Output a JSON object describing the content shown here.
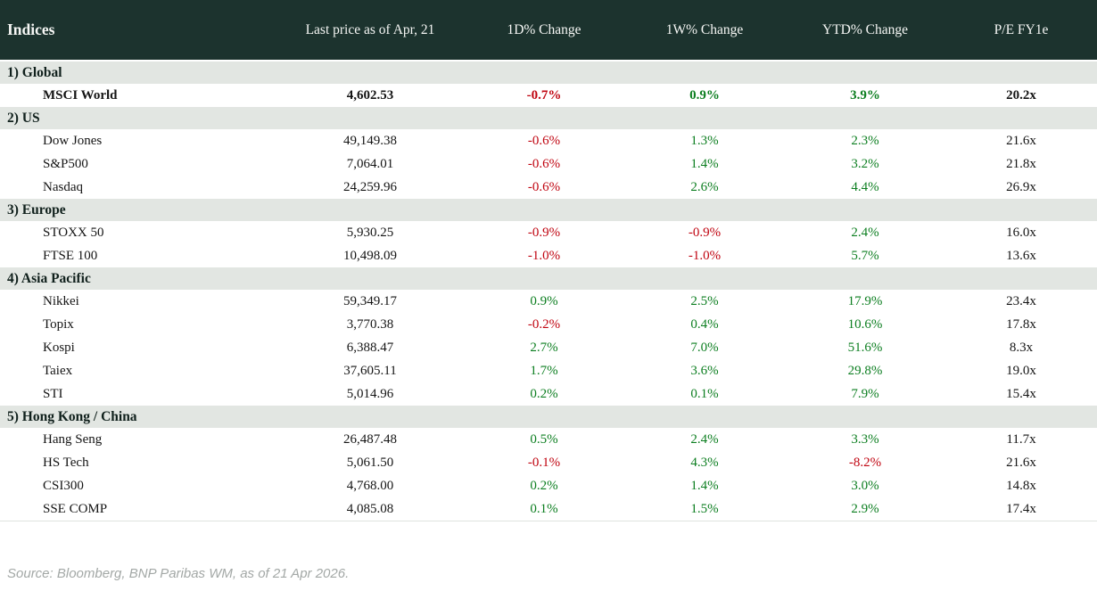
{
  "table": {
    "columns": [
      "Indices",
      "Last price as of Apr, 21",
      "1D% Change",
      "1W% Change",
      "YTD% Change",
      "P/E FY1e"
    ],
    "sections": [
      {
        "label": "1) Global",
        "rows": [
          {
            "name": "MSCI World",
            "bold": true,
            "price": "4,602.53",
            "d1": "-0.7%",
            "w1": "0.9%",
            "ytd": "3.9%",
            "pe": "20.2x"
          }
        ]
      },
      {
        "label": "2) US",
        "rows": [
          {
            "name": "Dow Jones",
            "price": "49,149.38",
            "d1": "-0.6%",
            "w1": "1.3%",
            "ytd": "2.3%",
            "pe": "21.6x"
          },
          {
            "name": "S&P500",
            "price": "7,064.01",
            "d1": "-0.6%",
            "w1": "1.4%",
            "ytd": "3.2%",
            "pe": "21.8x"
          },
          {
            "name": "Nasdaq",
            "price": "24,259.96",
            "d1": "-0.6%",
            "w1": "2.6%",
            "ytd": "4.4%",
            "pe": "26.9x"
          }
        ]
      },
      {
        "label": "3) Europe",
        "rows": [
          {
            "name": "STOXX 50",
            "price": "5,930.25",
            "d1": "-0.9%",
            "w1": "-0.9%",
            "ytd": "2.4%",
            "pe": "16.0x"
          },
          {
            "name": "FTSE 100",
            "price": "10,498.09",
            "d1": "-1.0%",
            "w1": "-1.0%",
            "ytd": "5.7%",
            "pe": "13.6x"
          }
        ]
      },
      {
        "label": "4) Asia Pacific",
        "rows": [
          {
            "name": "Nikkei",
            "price": "59,349.17",
            "d1": "0.9%",
            "w1": "2.5%",
            "ytd": "17.9%",
            "pe": "23.4x"
          },
          {
            "name": "Topix",
            "price": "3,770.38",
            "d1": "-0.2%",
            "w1": "0.4%",
            "ytd": "10.6%",
            "pe": "17.8x"
          },
          {
            "name": "Kospi",
            "price": "6,388.47",
            "d1": "2.7%",
            "w1": "7.0%",
            "ytd": "51.6%",
            "pe": "8.3x"
          },
          {
            "name": "Taiex",
            "price": "37,605.11",
            "d1": "1.7%",
            "w1": "3.6%",
            "ytd": "29.8%",
            "pe": "19.0x"
          },
          {
            "name": "STI",
            "price": "5,014.96",
            "d1": "0.2%",
            "w1": "0.1%",
            "ytd": "7.9%",
            "pe": "15.4x"
          }
        ]
      },
      {
        "label": "5) Hong Kong / China",
        "rows": [
          {
            "name": "Hang Seng",
            "price": "26,487.48",
            "d1": "0.5%",
            "w1": "2.4%",
            "ytd": "3.3%",
            "pe": "11.7x"
          },
          {
            "name": "HS Tech",
            "price": "5,061.50",
            "d1": "-0.1%",
            "w1": "4.3%",
            "ytd": "-8.2%",
            "pe": "21.6x"
          },
          {
            "name": "CSI300",
            "price": "4,768.00",
            "d1": "0.2%",
            "w1": "1.4%",
            "ytd": "3.0%",
            "pe": "14.8x"
          },
          {
            "name": "SSE COMP",
            "price": "4,085.08",
            "d1": "0.1%",
            "w1": "1.5%",
            "ytd": "2.9%",
            "pe": "17.4x"
          }
        ]
      }
    ]
  },
  "footer": {
    "source": "Source: Bloomberg, BNP Paribas WM, as of 21 Apr 2026."
  },
  "colors": {
    "header_bg": "#1c332e",
    "header_text": "#f6f7f5",
    "section_bg": "#e2e6e2",
    "positive": "#0c7e20",
    "negative": "#c00511",
    "footer_text": "#a3a8a6"
  }
}
